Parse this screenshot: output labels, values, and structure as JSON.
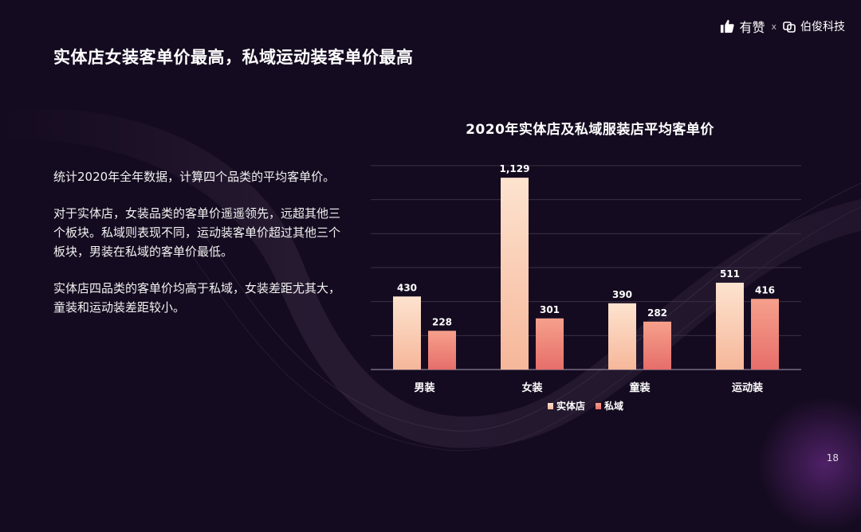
{
  "header": {
    "brand_left": "有赞",
    "separator": "x",
    "brand_right": "伯俊科技",
    "brand_left_icon": "thumbs-up-icon",
    "brand_right_icon": "bojun-logo-icon"
  },
  "page": {
    "title": "实体店女装客单价最高，私域运动装客单价最高",
    "paragraphs": [
      "统计2020年全年数据，计算四个品类的平均客单价。",
      "对于实体店，女装品类的客单价遥遥领先，远超其他三个板块。私域则表现不同，运动装客单价超过其他三个板块，男装在私域的客单价最低。",
      "实体店四品类的客单价均高于私域，女装差距尤其大，童装和运动装差距较小。"
    ],
    "page_number": "18"
  },
  "colors": {
    "background": "#150b20",
    "offline_top": "#fde3cf",
    "offline_bottom": "#f6b79a",
    "private_top": "#f6a08c",
    "private_bottom": "#e66e6a"
  },
  "chart_data": {
    "type": "bar",
    "title": "2020年实体店及私域服装店平均客单价",
    "categories": [
      "男装",
      "女装",
      "童装",
      "运动装"
    ],
    "series": [
      {
        "name": "实体店",
        "values": [
          430,
          1129,
          390,
          511
        ],
        "labels": [
          "430",
          "1,129",
          "390",
          "511"
        ]
      },
      {
        "name": "私域",
        "values": [
          228,
          301,
          282,
          416
        ],
        "labels": [
          "228",
          "301",
          "282",
          "416"
        ]
      }
    ],
    "ylim": [
      0,
      1200
    ],
    "grid": true,
    "legend": "bottom"
  }
}
